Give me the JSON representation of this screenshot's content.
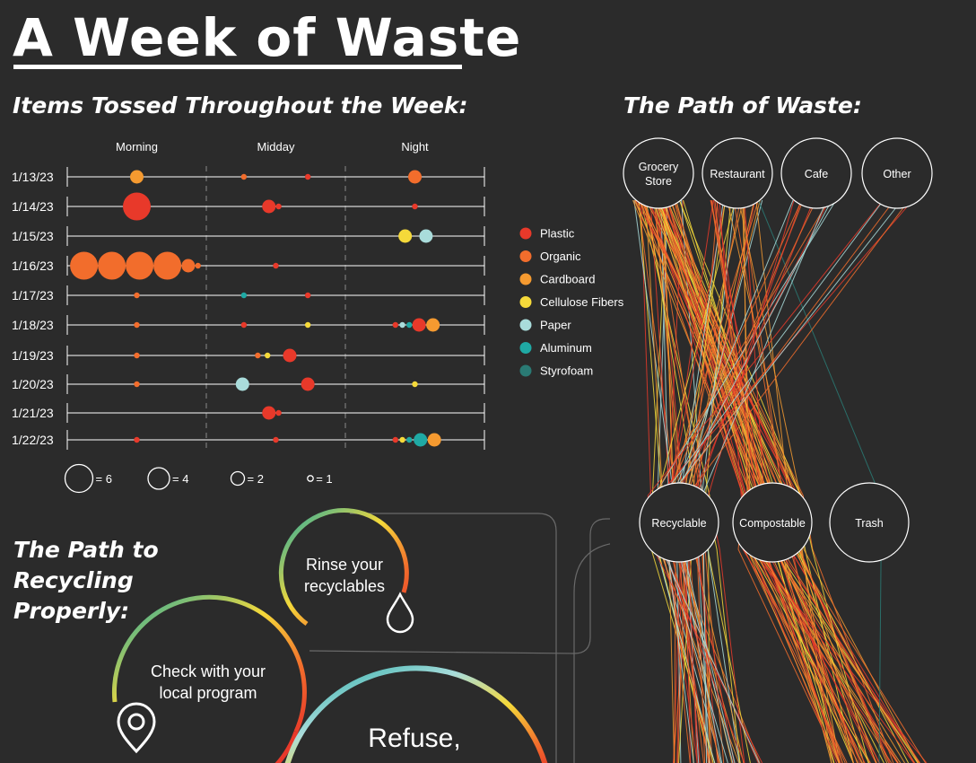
{
  "header": {
    "title": "A Week of Waste",
    "tossed_title": "Items Tossed Throughout the Week:",
    "path_title": "The Path of Waste:",
    "recycle_title": "The Path to Recycling Properly:"
  },
  "colors": {
    "Plastic": "#e8392a",
    "Organic": "#f26d2c",
    "Cardboard": "#f59a30",
    "Cellulose Fibers": "#f5d93a",
    "Paper": "#a9dcdb",
    "Aluminum": "#1fa9a4",
    "Styrofoam": "#2a7a74"
  },
  "chart_data": [
    {
      "type": "scatter",
      "title": "Items Tossed Throughout the Week:",
      "columns": [
        "Morning",
        "Midday",
        "Night"
      ],
      "days": [
        "1/13/23",
        "1/14/23",
        "1/15/23",
        "1/16/23",
        "1/17/23",
        "1/18/23",
        "1/19/23",
        "1/20/23",
        "1/21/23",
        "1/22/23"
      ],
      "legend": [
        "Plastic",
        "Organic",
        "Cardboard",
        "Cellulose Fibers",
        "Paper",
        "Aluminum",
        "Styrofoam"
      ],
      "size_key": [
        {
          "label": "= 6",
          "value": 6
        },
        {
          "label": "= 4",
          "value": 4
        },
        {
          "label": "= 2",
          "value": 2
        },
        {
          "label": "= 1",
          "value": 1
        }
      ],
      "points": [
        {
          "day": "1/13/23",
          "time": 0.5,
          "type": "Cardboard",
          "count": 2
        },
        {
          "day": "1/13/23",
          "time": 1.27,
          "type": "Organic",
          "count": 1
        },
        {
          "day": "1/13/23",
          "time": 1.73,
          "type": "Plastic",
          "count": 1
        },
        {
          "day": "1/13/23",
          "time": 2.5,
          "type": "Organic",
          "count": 2
        },
        {
          "day": "1/14/23",
          "time": 0.5,
          "type": "Plastic",
          "count": 6
        },
        {
          "day": "1/14/23",
          "time": 1.45,
          "type": "Plastic",
          "count": 2
        },
        {
          "day": "1/14/23",
          "time": 1.52,
          "type": "Plastic",
          "count": 1
        },
        {
          "day": "1/14/23",
          "time": 2.5,
          "type": "Plastic",
          "count": 1
        },
        {
          "day": "1/15/23",
          "time": 2.43,
          "type": "Cellulose Fibers",
          "count": 2
        },
        {
          "day": "1/15/23",
          "time": 2.58,
          "type": "Paper",
          "count": 2
        },
        {
          "day": "1/16/23",
          "time": 0.12,
          "type": "Organic",
          "count": 6
        },
        {
          "day": "1/16/23",
          "time": 0.32,
          "type": "Organic",
          "count": 6
        },
        {
          "day": "1/16/23",
          "time": 0.52,
          "type": "Organic",
          "count": 6
        },
        {
          "day": "1/16/23",
          "time": 0.72,
          "type": "Organic",
          "count": 6
        },
        {
          "day": "1/16/23",
          "time": 0.87,
          "type": "Organic",
          "count": 2
        },
        {
          "day": "1/16/23",
          "time": 0.94,
          "type": "Organic",
          "count": 1
        },
        {
          "day": "1/16/23",
          "time": 1.5,
          "type": "Plastic",
          "count": 1
        },
        {
          "day": "1/17/23",
          "time": 0.5,
          "type": "Organic",
          "count": 1
        },
        {
          "day": "1/17/23",
          "time": 1.27,
          "type": "Aluminum",
          "count": 1
        },
        {
          "day": "1/17/23",
          "time": 1.73,
          "type": "Plastic",
          "count": 1
        },
        {
          "day": "1/18/23",
          "time": 0.5,
          "type": "Organic",
          "count": 1
        },
        {
          "day": "1/18/23",
          "time": 1.27,
          "type": "Plastic",
          "count": 1
        },
        {
          "day": "1/18/23",
          "time": 1.73,
          "type": "Cellulose Fibers",
          "count": 1
        },
        {
          "day": "1/18/23",
          "time": 2.36,
          "type": "Plastic",
          "count": 1
        },
        {
          "day": "1/18/23",
          "time": 2.41,
          "type": "Paper",
          "count": 1
        },
        {
          "day": "1/18/23",
          "time": 2.46,
          "type": "Aluminum",
          "count": 1
        },
        {
          "day": "1/18/23",
          "time": 2.53,
          "type": "Plastic",
          "count": 2
        },
        {
          "day": "1/18/23",
          "time": 2.63,
          "type": "Cardboard",
          "count": 2
        },
        {
          "day": "1/19/23",
          "time": 0.5,
          "type": "Organic",
          "count": 1
        },
        {
          "day": "1/19/23",
          "time": 1.37,
          "type": "Organic",
          "count": 1
        },
        {
          "day": "1/19/23",
          "time": 1.44,
          "type": "Cellulose Fibers",
          "count": 1
        },
        {
          "day": "1/19/23",
          "time": 1.6,
          "type": "Plastic",
          "count": 2
        },
        {
          "day": "1/20/23",
          "time": 0.5,
          "type": "Organic",
          "count": 1
        },
        {
          "day": "1/20/23",
          "time": 1.26,
          "type": "Paper",
          "count": 2
        },
        {
          "day": "1/20/23",
          "time": 1.73,
          "type": "Plastic",
          "count": 2
        },
        {
          "day": "1/20/23",
          "time": 2.5,
          "type": "Cellulose Fibers",
          "count": 1
        },
        {
          "day": "1/21/23",
          "time": 1.45,
          "type": "Plastic",
          "count": 2
        },
        {
          "day": "1/21/23",
          "time": 1.52,
          "type": "Plastic",
          "count": 1
        },
        {
          "day": "1/22/23",
          "time": 0.5,
          "type": "Plastic",
          "count": 1
        },
        {
          "day": "1/22/23",
          "time": 1.5,
          "type": "Plastic",
          "count": 1
        },
        {
          "day": "1/22/23",
          "time": 2.36,
          "type": "Plastic",
          "count": 1
        },
        {
          "day": "1/22/23",
          "time": 2.41,
          "type": "Cellulose Fibers",
          "count": 1
        },
        {
          "day": "1/22/23",
          "time": 2.46,
          "type": "Aluminum",
          "count": 1
        },
        {
          "day": "1/22/23",
          "time": 2.54,
          "type": "Aluminum",
          "count": 2
        },
        {
          "day": "1/22/23",
          "time": 2.64,
          "type": "Cardboard",
          "count": 2
        }
      ]
    },
    {
      "type": "flow",
      "title": "The Path of Waste:",
      "sources": [
        "Grocery Store",
        "Restaurant",
        "Cafe",
        "Other"
      ],
      "destinations": [
        "Recyclable",
        "Compostable",
        "Trash"
      ],
      "flows": [
        {
          "from": "Grocery Store",
          "to": "Recyclable",
          "lines": 20,
          "types": [
            "Plastic",
            "Organic",
            "Cardboard",
            "Cellulose Fibers",
            "Paper"
          ]
        },
        {
          "from": "Grocery Store",
          "to": "Compostable",
          "lines": 45,
          "types": [
            "Organic",
            "Plastic",
            "Cardboard",
            "Cellulose Fibers"
          ]
        },
        {
          "from": "Restaurant",
          "to": "Recyclable",
          "lines": 15,
          "types": [
            "Organic",
            "Plastic",
            "Cardboard",
            "Cellulose Fibers",
            "Paper"
          ]
        },
        {
          "from": "Restaurant",
          "to": "Compostable",
          "lines": 15,
          "types": [
            "Organic",
            "Plastic",
            "Cardboard"
          ]
        },
        {
          "from": "Restaurant",
          "to": "Trash",
          "lines": 1,
          "types": [
            "Styrofoam"
          ]
        },
        {
          "from": "Cafe",
          "to": "Recyclable",
          "lines": 12,
          "types": [
            "Plastic",
            "Organic",
            "Paper"
          ]
        },
        {
          "from": "Other",
          "to": "Recyclable",
          "lines": 6,
          "types": [
            "Plastic",
            "Paper",
            "Organic"
          ]
        }
      ]
    }
  ],
  "steps": [
    {
      "label_lines": [
        "Rinse your",
        "recyclables"
      ],
      "icon": "water-drop-icon"
    },
    {
      "label_lines": [
        "Check with your",
        "local program"
      ],
      "icon": "map-pin-icon"
    },
    {
      "label_lines": [
        "Refuse,"
      ],
      "icon": ""
    }
  ]
}
